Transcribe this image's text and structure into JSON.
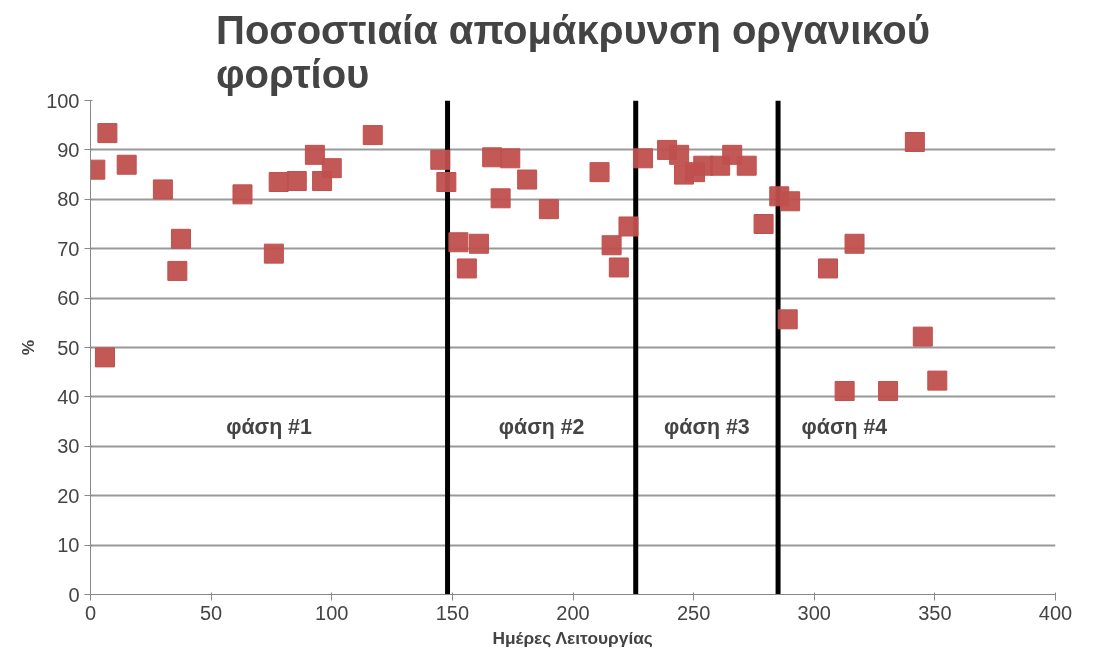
{
  "chart_data": {
    "type": "scatter",
    "title": "Ποσοστιαία απομάκρυνση οργανικού\nφορτίου",
    "xlabel": "Ημέρες Λειτουργίας",
    "ylabel": "%",
    "x": [
      2,
      6,
      7,
      15,
      30,
      36,
      37.5,
      63,
      76,
      78,
      85.5,
      93,
      96,
      100,
      117,
      145,
      147.5,
      152.5,
      156,
      161,
      166.5,
      170,
      174,
      181,
      190,
      211,
      216,
      219,
      223,
      229,
      239,
      244,
      246,
      250.6,
      254,
      261,
      266,
      272,
      279,
      285.5,
      290,
      289,
      305.7,
      312.6,
      316.7,
      330.6,
      341.7,
      345,
      351
    ],
    "values": [
      86,
      48,
      93.4,
      87,
      82,
      65.5,
      72,
      81,
      69,
      83.5,
      83.7,
      89,
      83.7,
      86.3,
      93,
      88,
      83.5,
      71.3,
      66,
      71,
      88.5,
      80.2,
      88.3,
      84,
      78,
      85.5,
      70.7,
      66.2,
      74.5,
      88.3,
      90,
      89,
      85,
      85.5,
      86.8,
      86.8,
      89,
      86.8,
      75,
      80.6,
      79.6,
      55.7,
      66,
      41.2,
      71,
      41.2,
      91.6,
      52.2,
      43.3
    ],
    "color": "#c0504d",
    "marker": "square",
    "xlim": [
      0,
      400
    ],
    "xticks": [
      0,
      50,
      100,
      150,
      200,
      250,
      300,
      350,
      400
    ],
    "ylim": [
      0,
      100
    ],
    "yticks": [
      0,
      10,
      20,
      30,
      40,
      50,
      60,
      70,
      80,
      90,
      100
    ],
    "grid": "y",
    "ref_lines": [
      {
        "axis": "x",
        "value": 148,
        "color": "#000000"
      },
      {
        "axis": "x",
        "value": 226,
        "color": "#000000"
      },
      {
        "axis": "x",
        "value": 285,
        "color": "#000000"
      }
    ],
    "annotations": [
      "φάση #1",
      "φάση #2",
      "φάση #3",
      "φάση #4"
    ]
  }
}
